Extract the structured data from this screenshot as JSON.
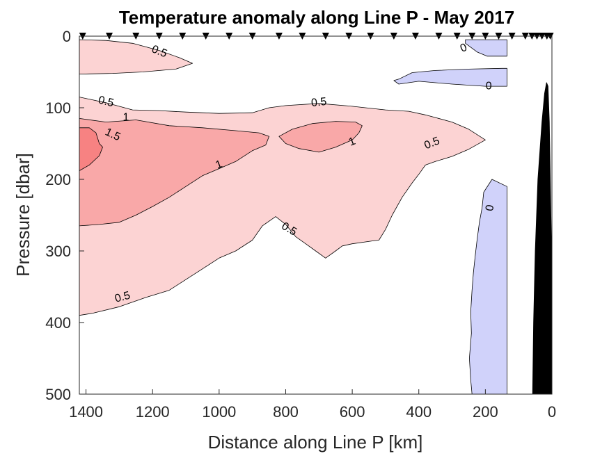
{
  "chart_data": {
    "type": "contour",
    "title": "Temperature anomaly along Line P - May 2017",
    "xlabel": "Distance along Line P [km]",
    "ylabel": "Pressure [dbar]",
    "xlim": [
      1420,
      0
    ],
    "ylim": [
      0,
      500
    ],
    "x_reversed": true,
    "y_reversed": true,
    "xticks": [
      1400,
      1200,
      1000,
      800,
      600,
      400,
      200,
      0
    ],
    "yticks": [
      0,
      100,
      200,
      300,
      400,
      500
    ],
    "colors": {
      "band_0_5": "#fcd3d3",
      "band_1_0": "#f9a8a8",
      "band_1_5": "#f78282",
      "band_neg_0": "#d0d2fa",
      "bathymetry": "#000000",
      "contour_line": "#000000"
    },
    "station_km": [
      1410,
      1330,
      1250,
      1180,
      1110,
      1040,
      970,
      900,
      820,
      750,
      680,
      610,
      545,
      475,
      410,
      340,
      285,
      240,
      200,
      160,
      120,
      80,
      60,
      45,
      30,
      15,
      5
    ],
    "regions": [
      {
        "level": "0.5",
        "fill": "band_0_5",
        "points": [
          [
            1420,
            5
          ],
          [
            1340,
            6
          ],
          [
            1260,
            10
          ],
          [
            1180,
            20
          ],
          [
            1120,
            30
          ],
          [
            1080,
            38
          ],
          [
            1130,
            46
          ],
          [
            1230,
            50
          ],
          [
            1320,
            52
          ],
          [
            1420,
            53
          ]
        ]
      },
      {
        "level": "0.5",
        "fill": "band_0_5",
        "points": [
          [
            1420,
            85
          ],
          [
            1340,
            93
          ],
          [
            1260,
            103
          ],
          [
            1180,
            104
          ],
          [
            1100,
            106
          ],
          [
            1000,
            108
          ],
          [
            900,
            107
          ],
          [
            850,
            100
          ],
          [
            800,
            97
          ],
          [
            700,
            94
          ],
          [
            600,
            98
          ],
          [
            500,
            103
          ],
          [
            430,
            105
          ],
          [
            380,
            110
          ],
          [
            300,
            120
          ],
          [
            250,
            130
          ],
          [
            200,
            145
          ],
          [
            250,
            158
          ],
          [
            300,
            168
          ],
          [
            350,
            175
          ],
          [
            380,
            180
          ],
          [
            400,
            193
          ],
          [
            420,
            205
          ],
          [
            450,
            225
          ],
          [
            480,
            250
          ],
          [
            500,
            270
          ],
          [
            520,
            285
          ],
          [
            540,
            286
          ],
          [
            600,
            290
          ],
          [
            630,
            293
          ],
          [
            650,
            300
          ],
          [
            680,
            310
          ],
          [
            710,
            300
          ],
          [
            740,
            290
          ],
          [
            770,
            280
          ],
          [
            800,
            263
          ],
          [
            830,
            252
          ],
          [
            870,
            265
          ],
          [
            900,
            285
          ],
          [
            950,
            300
          ],
          [
            1000,
            310
          ],
          [
            1050,
            325
          ],
          [
            1100,
            340
          ],
          [
            1150,
            355
          ],
          [
            1220,
            365
          ],
          [
            1300,
            378
          ],
          [
            1380,
            387
          ],
          [
            1420,
            390
          ]
        ]
      },
      {
        "level": "1",
        "fill": "band_1_0",
        "points": [
          [
            1420,
            115
          ],
          [
            1340,
            120
          ],
          [
            1250,
            117
          ],
          [
            1150,
            125
          ],
          [
            1050,
            128
          ],
          [
            950,
            132
          ],
          [
            880,
            135
          ],
          [
            850,
            140
          ],
          [
            860,
            152
          ],
          [
            900,
            160
          ],
          [
            950,
            175
          ],
          [
            1000,
            185
          ],
          [
            1050,
            195
          ],
          [
            1100,
            210
          ],
          [
            1150,
            225
          ],
          [
            1200,
            238
          ],
          [
            1250,
            250
          ],
          [
            1300,
            260
          ],
          [
            1360,
            263
          ],
          [
            1420,
            265
          ]
        ]
      },
      {
        "level": "1",
        "fill": "band_1_0",
        "points": [
          [
            820,
            140
          ],
          [
            780,
            130
          ],
          [
            720,
            122
          ],
          [
            650,
            119
          ],
          [
            590,
            120
          ],
          [
            570,
            125
          ],
          [
            580,
            135
          ],
          [
            600,
            145
          ],
          [
            650,
            155
          ],
          [
            700,
            162
          ],
          [
            760,
            157
          ],
          [
            800,
            150
          ]
        ]
      },
      {
        "level": "1.5",
        "fill": "band_1_5",
        "points": [
          [
            1420,
            128
          ],
          [
            1390,
            128
          ],
          [
            1370,
            135
          ],
          [
            1360,
            150
          ],
          [
            1350,
            155
          ],
          [
            1360,
            167
          ],
          [
            1390,
            180
          ],
          [
            1420,
            188
          ]
        ]
      },
      {
        "level": "0",
        "fill": "band_neg_0",
        "points": [
          [
            260,
            5
          ],
          [
            135,
            5
          ],
          [
            135,
            28
          ],
          [
            195,
            28
          ],
          [
            225,
            22
          ],
          [
            260,
            10
          ]
        ]
      },
      {
        "level": "0",
        "fill": "band_neg_0",
        "points": [
          [
            460,
            60
          ],
          [
            420,
            51
          ],
          [
            350,
            48
          ],
          [
            250,
            46
          ],
          [
            150,
            45
          ],
          [
            135,
            45
          ],
          [
            135,
            70
          ],
          [
            200,
            70
          ],
          [
            300,
            67
          ],
          [
            400,
            63
          ],
          [
            460,
            67
          ],
          [
            475,
            62
          ]
        ]
      },
      {
        "level": "0",
        "fill": "band_neg_0",
        "points": [
          [
            135,
            210
          ],
          [
            180,
            200
          ],
          [
            205,
            218
          ],
          [
            210,
            240
          ],
          [
            218,
            260
          ],
          [
            225,
            285
          ],
          [
            230,
            305
          ],
          [
            236,
            330
          ],
          [
            240,
            355
          ],
          [
            244,
            385
          ],
          [
            242,
            415
          ],
          [
            248,
            450
          ],
          [
            244,
            480
          ],
          [
            240,
            500
          ],
          [
            135,
            500
          ]
        ]
      },
      {
        "level": "bathymetry",
        "fill": "bathymetry",
        "points": [
          [
            58,
            500
          ],
          [
            55,
            400
          ],
          [
            50,
            300
          ],
          [
            42,
            200
          ],
          [
            30,
            120
          ],
          [
            22,
            80
          ],
          [
            16,
            65
          ],
          [
            12,
            70
          ],
          [
            8,
            120
          ],
          [
            5,
            200
          ],
          [
            2,
            280
          ],
          [
            0,
            300
          ],
          [
            0,
            500
          ]
        ]
      }
    ],
    "contour_labels": [
      {
        "text": "0.5",
        "x": 1180,
        "y": 22,
        "angle": 22
      },
      {
        "text": "0.5",
        "x": 1340,
        "y": 92,
        "angle": 14
      },
      {
        "text": "1",
        "x": 1280,
        "y": 114,
        "angle": 0
      },
      {
        "text": "1.5",
        "x": 1320,
        "y": 138,
        "angle": 25
      },
      {
        "text": "0.5",
        "x": 700,
        "y": 93,
        "angle": -6
      },
      {
        "text": "1",
        "x": 600,
        "y": 148,
        "angle": -22
      },
      {
        "text": "1",
        "x": 1000,
        "y": 180,
        "angle": -22
      },
      {
        "text": "0.5",
        "x": 360,
        "y": 150,
        "angle": -22
      },
      {
        "text": "0.5",
        "x": 790,
        "y": 270,
        "angle": 30
      },
      {
        "text": "0.5",
        "x": 1290,
        "y": 365,
        "angle": -15
      },
      {
        "text": "0",
        "x": 265,
        "y": 17,
        "angle": -22
      },
      {
        "text": "0",
        "x": 190,
        "y": 70,
        "angle": 0
      },
      {
        "text": "0",
        "x": 185,
        "y": 240,
        "angle": -80
      }
    ]
  }
}
